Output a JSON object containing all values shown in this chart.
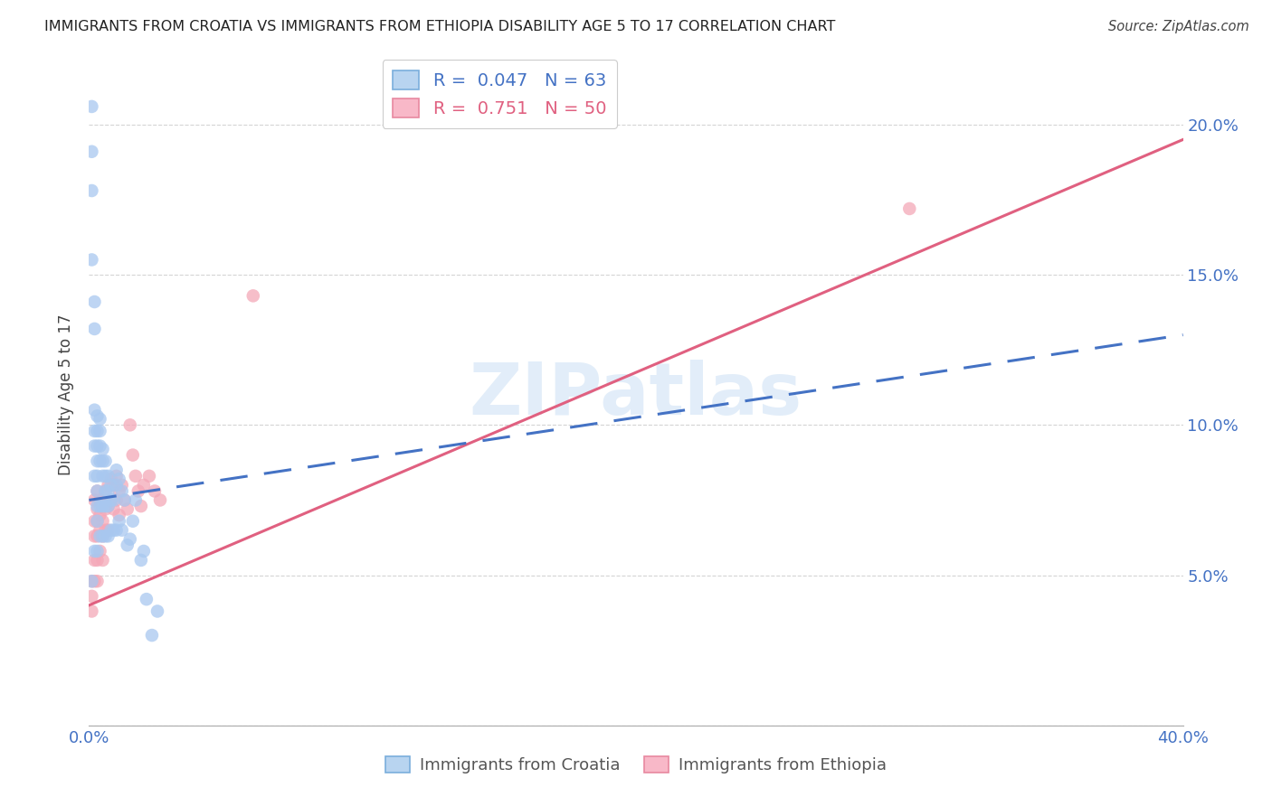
{
  "title": "IMMIGRANTS FROM CROATIA VS IMMIGRANTS FROM ETHIOPIA DISABILITY AGE 5 TO 17 CORRELATION CHART",
  "source": "Source: ZipAtlas.com",
  "ylabel": "Disability Age 5 to 17",
  "xlim": [
    0.0,
    0.4
  ],
  "ylim": [
    0.0,
    0.22
  ],
  "xticks": [
    0.0,
    0.1,
    0.2,
    0.3,
    0.4
  ],
  "xtick_labels": [
    "0.0%",
    "",
    "",
    "",
    "40.0%"
  ],
  "yticks": [
    0.0,
    0.05,
    0.1,
    0.15,
    0.2
  ],
  "ytick_labels": [
    "",
    "5.0%",
    "10.0%",
    "15.0%",
    "20.0%"
  ],
  "croatia_color": "#a8c8f0",
  "ethiopia_color": "#f4a8b8",
  "croatia_R": 0.047,
  "croatia_N": 63,
  "ethiopia_R": 0.751,
  "ethiopia_N": 50,
  "watermark": "ZIPatlas",
  "croatia_line_color": "#4472c4",
  "ethiopia_line_color": "#e06080",
  "grid_color": "#d0d0d0",
  "title_color": "#222222",
  "axis_color": "#4472c4",
  "legend_border_color": "#b0b0b0",
  "croatia_x": [
    0.001,
    0.001,
    0.001,
    0.001,
    0.001,
    0.002,
    0.002,
    0.002,
    0.002,
    0.002,
    0.002,
    0.002,
    0.003,
    0.003,
    0.003,
    0.003,
    0.003,
    0.003,
    0.003,
    0.003,
    0.003,
    0.004,
    0.004,
    0.004,
    0.004,
    0.004,
    0.004,
    0.005,
    0.005,
    0.005,
    0.005,
    0.005,
    0.006,
    0.006,
    0.006,
    0.006,
    0.006,
    0.007,
    0.007,
    0.007,
    0.007,
    0.008,
    0.008,
    0.008,
    0.009,
    0.009,
    0.01,
    0.01,
    0.01,
    0.011,
    0.011,
    0.012,
    0.012,
    0.013,
    0.014,
    0.015,
    0.016,
    0.017,
    0.019,
    0.02,
    0.021,
    0.023,
    0.025
  ],
  "croatia_y": [
    0.206,
    0.191,
    0.178,
    0.155,
    0.048,
    0.141,
    0.132,
    0.105,
    0.098,
    0.093,
    0.083,
    0.058,
    0.103,
    0.098,
    0.093,
    0.088,
    0.083,
    0.078,
    0.073,
    0.068,
    0.058,
    0.102,
    0.098,
    0.093,
    0.088,
    0.073,
    0.063,
    0.092,
    0.088,
    0.083,
    0.073,
    0.063,
    0.088,
    0.083,
    0.078,
    0.073,
    0.063,
    0.083,
    0.078,
    0.073,
    0.063,
    0.08,
    0.075,
    0.065,
    0.075,
    0.065,
    0.085,
    0.08,
    0.065,
    0.082,
    0.068,
    0.078,
    0.065,
    0.075,
    0.06,
    0.062,
    0.068,
    0.075,
    0.055,
    0.058,
    0.042,
    0.03,
    0.038
  ],
  "ethiopia_x": [
    0.001,
    0.001,
    0.001,
    0.002,
    0.002,
    0.002,
    0.002,
    0.002,
    0.003,
    0.003,
    0.003,
    0.003,
    0.003,
    0.003,
    0.004,
    0.004,
    0.004,
    0.004,
    0.005,
    0.005,
    0.005,
    0.005,
    0.006,
    0.006,
    0.006,
    0.007,
    0.007,
    0.007,
    0.008,
    0.008,
    0.009,
    0.009,
    0.01,
    0.01,
    0.011,
    0.011,
    0.012,
    0.013,
    0.014,
    0.015,
    0.016,
    0.017,
    0.018,
    0.019,
    0.02,
    0.022,
    0.024,
    0.026,
    0.06,
    0.3
  ],
  "ethiopia_y": [
    0.048,
    0.043,
    0.038,
    0.075,
    0.068,
    0.063,
    0.055,
    0.048,
    0.078,
    0.072,
    0.068,
    0.063,
    0.055,
    0.048,
    0.075,
    0.07,
    0.065,
    0.058,
    0.073,
    0.068,
    0.063,
    0.055,
    0.078,
    0.072,
    0.065,
    0.08,
    0.073,
    0.065,
    0.082,
    0.075,
    0.08,
    0.072,
    0.083,
    0.075,
    0.078,
    0.07,
    0.08,
    0.075,
    0.072,
    0.1,
    0.09,
    0.083,
    0.078,
    0.073,
    0.08,
    0.083,
    0.078,
    0.075,
    0.143,
    0.172
  ],
  "ethiopia_line_x0": 0.0,
  "ethiopia_line_y0": 0.04,
  "ethiopia_line_x1": 0.4,
  "ethiopia_line_y1": 0.195,
  "croatia_line_x0": 0.0,
  "croatia_line_y0": 0.075,
  "croatia_line_x1": 0.4,
  "croatia_line_y1": 0.13
}
